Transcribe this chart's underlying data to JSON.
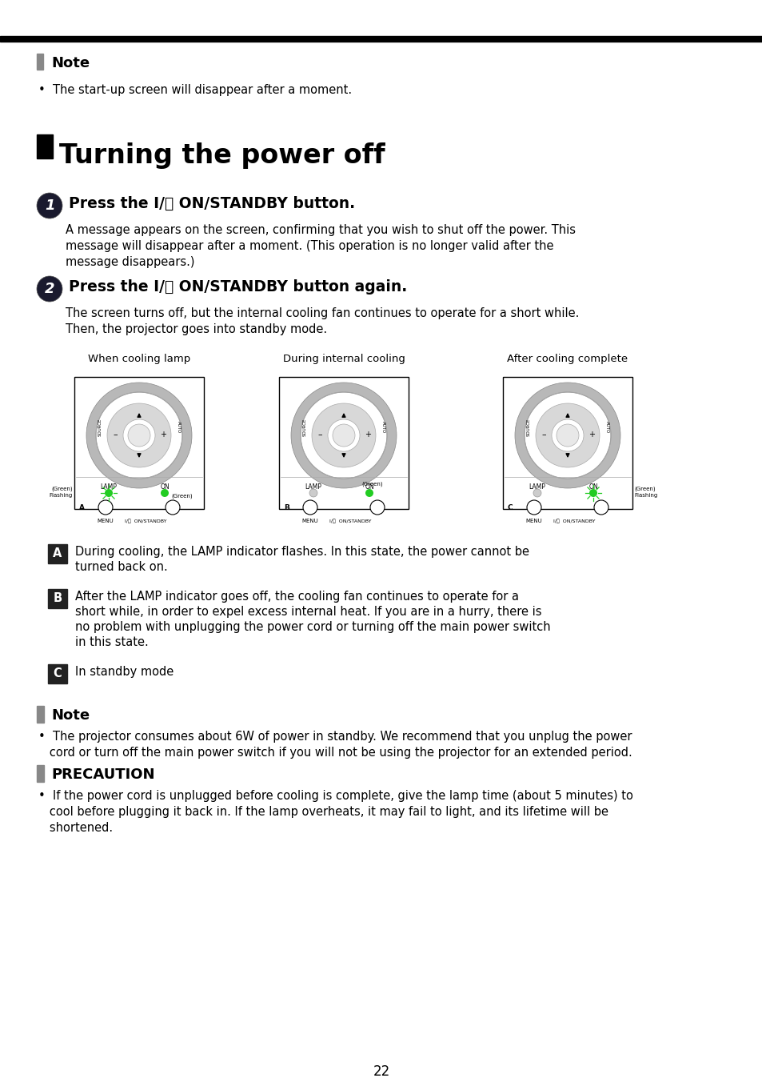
{
  "page_num": "22",
  "body_bg": "#ffffff",
  "top_note_title": "Note",
  "top_note_bullet": "The start-up screen will disappear after a moment.",
  "section_title": "Turning the power off",
  "step1_title": "Press the I/⏻ ON/STANDBY button.",
  "step1_body1": "A message appears on the screen, confirming that you wish to shut off the power. This",
  "step1_body2": "message will disappear after a moment. (This operation is no longer valid after the",
  "step1_body3": "message disappears.)",
  "step2_title": "Press the I/⏻ ON/STANDBY button again.",
  "step2_body1": "The screen turns off, but the internal cooling fan continues to operate for a short while.",
  "step2_body2": "Then, the projector goes into standby mode.",
  "diag_label1": "When cooling lamp",
  "diag_label2": "During internal cooling",
  "diag_label3": "After cooling complete",
  "label_a_line1": "During cooling, the LAMP indicator flashes. In this state, the power cannot be",
  "label_a_line2": "turned back on.",
  "label_b_line1": "After the LAMP indicator goes off, the cooling fan continues to operate for a",
  "label_b_line2": "short while, in order to expel excess internal heat. If you are in a hurry, there is",
  "label_b_line3": "no problem with unplugging the power cord or turning off the main power switch",
  "label_b_line4": "in this state.",
  "label_c_line1": "In standby mode",
  "bottom_note_title": "Note",
  "bottom_note_line1": "•  The projector consumes about 6W of power in standby. We recommend that you unplug the power",
  "bottom_note_line2": "   cord or turn off the main power switch if you will not be using the projector for an extended period.",
  "caution_title": "PRECAUTION",
  "caution_line1": "•  If the power cord is unplugged before cooling is complete, give the lamp time (about 5 minutes) to",
  "caution_line2": "   cool before plugging it back in. If the lamp overheats, it may fail to light, and its lifetime will be",
  "caution_line3": "   shortened."
}
